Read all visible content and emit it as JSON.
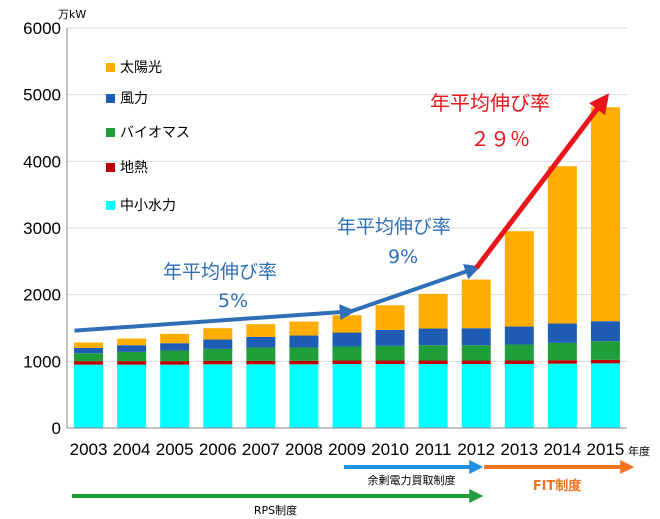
{
  "chart_data": {
    "type": "bar",
    "stacked": true,
    "y_unit_label": "万kW",
    "x_unit_label": "年度",
    "ylim": [
      0,
      6000
    ],
    "yticks": [
      0,
      1000,
      2000,
      3000,
      4000,
      5000,
      6000
    ],
    "categories": [
      "2003",
      "2004",
      "2005",
      "2006",
      "2007",
      "2008",
      "2009",
      "2010",
      "2011",
      "2012",
      "2013",
      "2014",
      "2015"
    ],
    "series": [
      {
        "name": "中小水力",
        "color": "#00ffff",
        "values": [
          950,
          950,
          950,
          955,
          955,
          955,
          960,
          960,
          960,
          960,
          960,
          965,
          970
        ]
      },
      {
        "name": "地熱",
        "color": "#c00000",
        "values": [
          52,
          52,
          52,
          52,
          52,
          52,
          52,
          52,
          52,
          52,
          52,
          52,
          52
        ]
      },
      {
        "name": "バイオマス",
        "color": "#1f9e3a",
        "values": [
          120,
          140,
          160,
          180,
          200,
          200,
          210,
          220,
          230,
          230,
          240,
          260,
          280
        ]
      },
      {
        "name": "風力",
        "color": "#1f5cb4",
        "values": [
          80,
          100,
          110,
          140,
          160,
          180,
          210,
          240,
          250,
          255,
          270,
          290,
          300
        ]
      },
      {
        "name": "太陽光",
        "color": "#ffae00",
        "values": [
          80,
          100,
          140,
          170,
          190,
          210,
          260,
          370,
          520,
          730,
          1430,
          2360,
          3210
        ]
      }
    ],
    "legend_order": [
      "太陽光",
      "風力",
      "バイオマス",
      "地熱",
      "中小水力"
    ],
    "legend_position": "top-left",
    "grid": "horizontal",
    "annotations": [
      {
        "line1": "年平均伸び率",
        "line2": "5%",
        "color": "#2e6fb7",
        "arrow_from": [
          "2003",
          1460
        ],
        "arrow_to": [
          "2009",
          1750
        ]
      },
      {
        "line1": "年平均伸び率",
        "line2": "9%",
        "color": "#2e6fb7",
        "arrow_from": [
          "2009",
          1750
        ],
        "arrow_to": [
          "2012",
          2400
        ]
      },
      {
        "line1": "年平均伸び率",
        "line2": "２９％",
        "color": "#e8151b",
        "arrow_from": [
          "2012",
          2400
        ],
        "arrow_to": [
          "2015",
          4950
        ]
      }
    ],
    "policies": [
      {
        "label": "余剰電力買取制度",
        "color": "#1f8fe0",
        "from": "2009",
        "to": "2012"
      },
      {
        "label": "FIT制度",
        "color": "#f47320",
        "from": "2012",
        "to": "2015"
      },
      {
        "label": "RPS制度",
        "color": "#1f9e3a",
        "from": "2003",
        "to": "2012"
      }
    ]
  }
}
